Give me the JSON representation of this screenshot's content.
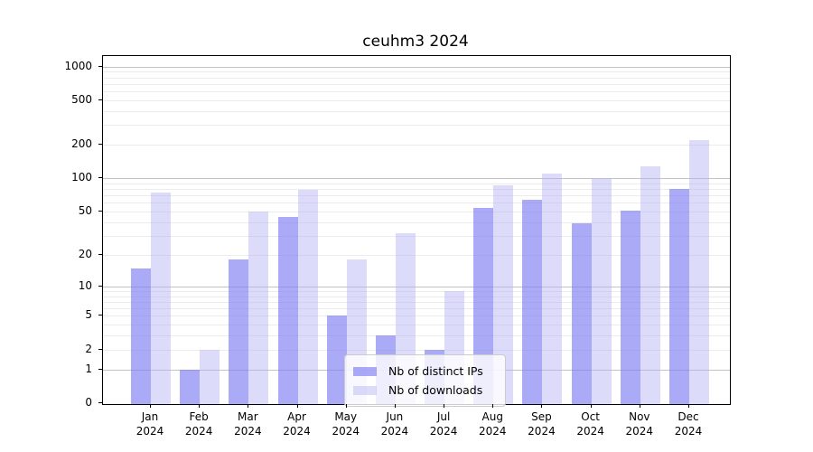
{
  "chart_data": {
    "type": "bar",
    "title": "ceuhm3 2024",
    "categories": [
      "Jan",
      "Feb",
      "Mar",
      "Apr",
      "May",
      "Jun",
      "Jul",
      "Aug",
      "Sep",
      "Oct",
      "Nov",
      "Dec"
    ],
    "x_year_label": "2024",
    "series": [
      {
        "name": "Nb of distinct IPs",
        "color": "#7c7cf1",
        "alpha": 0.65,
        "values": [
          15,
          1,
          18,
          45,
          5,
          3,
          2,
          54,
          64,
          39,
          51,
          80
        ]
      },
      {
        "name": "Nb of downloads",
        "color": "#b1b1f4",
        "alpha": 0.45,
        "values": [
          75,
          2,
          50,
          79,
          18,
          32,
          9,
          87,
          110,
          100,
          128,
          220
        ]
      }
    ],
    "yscale": "log10(1+x)",
    "yticks": [
      0,
      1,
      2,
      5,
      10,
      20,
      50,
      100,
      200,
      500,
      1000
    ],
    "ytick_labels": [
      "0",
      "1",
      "2",
      "5",
      "10",
      "20",
      "50",
      "100",
      "200",
      "500",
      "1000"
    ],
    "major_gridlines": [
      1,
      10,
      100,
      1000
    ],
    "minor_gridlines": [
      2,
      3,
      4,
      5,
      6,
      7,
      8,
      9,
      20,
      30,
      40,
      50,
      60,
      70,
      80,
      90,
      200,
      300,
      400,
      500,
      600,
      700,
      800,
      900
    ],
    "ylim": [
      0,
      1250
    ],
    "grid": true,
    "legend_position": "lower center",
    "colors": {
      "major_grid": "#c3c3c3",
      "minor_grid": "#ececec",
      "spine": "#000000",
      "background": "#ffffff"
    }
  }
}
